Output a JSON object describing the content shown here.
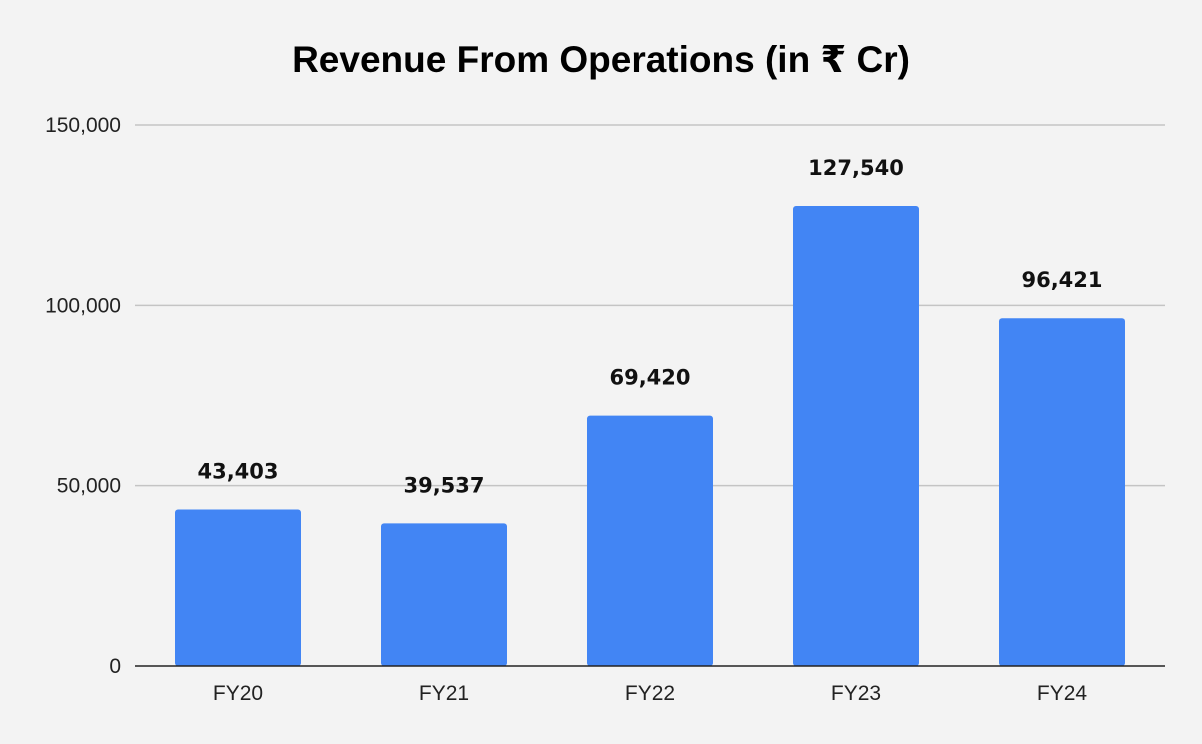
{
  "chart_data": {
    "type": "bar",
    "title": "Revenue From Operations (in ₹ Cr)",
    "xlabel": "",
    "ylabel": "",
    "categories": [
      "FY20",
      "FY21",
      "FY22",
      "FY23",
      "FY24"
    ],
    "values": [
      43403,
      39537,
      69420,
      127540,
      96421
    ],
    "value_labels": [
      "43,403",
      "39,537",
      "69,420",
      "127,540",
      "96,421"
    ],
    "ylim": [
      0,
      150000
    ],
    "yticks": [
      0,
      50000,
      100000,
      150000
    ],
    "ytick_labels": [
      "0",
      "50,000",
      "100,000",
      "150,000"
    ],
    "grid": true,
    "legend": "none",
    "bar_color": "#4285f4"
  }
}
